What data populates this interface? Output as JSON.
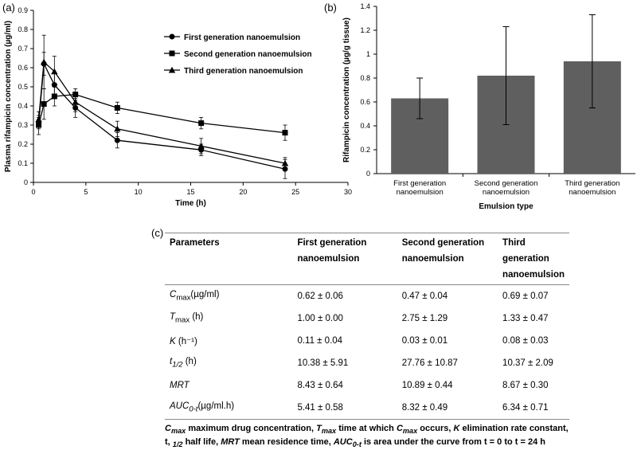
{
  "chart_data": [
    {
      "panel": "(a)",
      "type": "line",
      "xlabel": "Time (h)",
      "ylabel": "Plasma rifampicin concentration (µg/ml)",
      "xlim": [
        0,
        30
      ],
      "ylim": [
        0,
        0.9
      ],
      "xticks": [
        0,
        5,
        10,
        15,
        20,
        25,
        30
      ],
      "yticks": [
        0,
        0.1,
        0.2,
        0.3,
        0.4,
        0.5,
        0.6,
        0.7,
        0.8,
        0.9
      ],
      "grid": false,
      "legend": "top-right",
      "series": [
        {
          "name": "First generation nanoemulsion",
          "marker": "circle",
          "x": [
            0.5,
            1,
            2,
            4,
            8,
            16,
            24
          ],
          "y": [
            0.31,
            0.62,
            0.51,
            0.39,
            0.22,
            0.17,
            0.07
          ],
          "err": [
            0.03,
            0.06,
            0.06,
            0.05,
            0.04,
            0.03,
            0.05
          ]
        },
        {
          "name": "Second generation nanoemulsion",
          "marker": "square",
          "x": [
            0.5,
            1,
            2,
            4,
            8,
            16,
            24
          ],
          "y": [
            0.3,
            0.41,
            0.45,
            0.46,
            0.39,
            0.31,
            0.26
          ],
          "err": [
            0.05,
            0.08,
            0.05,
            0.03,
            0.03,
            0.03,
            0.04
          ]
        },
        {
          "name": "Third generation nanoemulsion",
          "marker": "triangle",
          "x": [
            0.5,
            1,
            2,
            4,
            8,
            16,
            24
          ],
          "y": [
            0.33,
            0.63,
            0.58,
            0.42,
            0.28,
            0.19,
            0.1
          ],
          "err": [
            0.04,
            0.14,
            0.08,
            0.05,
            0.04,
            0.04,
            0.03
          ]
        }
      ]
    },
    {
      "panel": "(b)",
      "type": "bar",
      "xlabel": "Emulsion type",
      "ylabel": "Rifampicin concentration (µg/g tissue)",
      "ylim": [
        0,
        1.4
      ],
      "yticks": [
        0,
        0.2,
        0.4,
        0.6,
        0.8,
        1,
        1.2,
        1.4
      ],
      "grid": false,
      "categories": [
        [
          "First generation",
          "nanoemulsion"
        ],
        [
          "Second generation",
          "nanoemulsion"
        ],
        [
          "Third generation",
          "nanoemulsion"
        ]
      ],
      "values": [
        0.63,
        0.82,
        0.94
      ],
      "err": [
        0.17,
        0.41,
        0.39
      ],
      "bar_color": "#5f5f5f"
    }
  ],
  "table": {
    "panel": "(c)",
    "headers": [
      [
        "Parameters",
        ""
      ],
      [
        "First generation",
        "nanoemulsion"
      ],
      [
        "Second generation",
        "nanoemulsion"
      ],
      [
        "Third generation",
        "nanoemulsion"
      ]
    ],
    "rows": [
      {
        "p": [
          "C",
          "max",
          "(µg/ml)"
        ],
        "v": [
          "0.62 ± 0.06",
          "0.47 ± 0.04",
          "0.69 ± 0.07"
        ]
      },
      {
        "p": [
          "T",
          "max",
          " (h)"
        ],
        "v": [
          "1.00 ± 0.00",
          "2.75 ± 1.29",
          "1.33 ± 0.47"
        ]
      },
      {
        "p": [
          "K",
          "",
          " (h⁻¹)"
        ],
        "v": [
          "0.11 ± 0.04",
          "0.03 ± 0.01",
          "0.08 ± 0.03"
        ]
      },
      {
        "p": [
          "t",
          "1/2",
          " (h)"
        ],
        "v": [
          "10.38 ± 5.91",
          "27.76 ± 10.87",
          "10.37 ± 2.09"
        ]
      },
      {
        "p": [
          "MRT",
          "",
          ""
        ],
        "v": [
          "8.43 ± 0.64",
          "10.89 ± 0.44",
          "8.67 ± 0.30"
        ]
      },
      {
        "p": [
          "AUC",
          "0-t",
          "(µg/ml.h)"
        ],
        "v": [
          "5.41 ± 0.58",
          "8.32 ± 0.49",
          "6.34 ± 0.71"
        ]
      }
    ],
    "footnote": {
      "line1": [
        {
          "t": "C",
          "i": true
        },
        {
          "t": "max",
          "i": true,
          "sub": true
        },
        {
          "t": " maximum drug concentration, "
        },
        {
          "t": "T",
          "i": true
        },
        {
          "t": "max",
          "i": true,
          "sub": true
        },
        {
          "t": " time at which "
        },
        {
          "t": "C",
          "i": true
        },
        {
          "t": "max",
          "i": true,
          "sub": true
        },
        {
          "t": " occurs, "
        },
        {
          "t": "K",
          "i": true
        },
        {
          "t": " elimination rate constant,"
        }
      ],
      "line2": [
        {
          "t": "t, "
        },
        {
          "t": "1/2",
          "i": true,
          "sub": true
        },
        {
          "t": " half life, "
        },
        {
          "t": "MRT",
          "i": true
        },
        {
          "t": " mean residence time, "
        },
        {
          "t": "AUC",
          "i": true
        },
        {
          "t": "0-t",
          "i": true,
          "sub": true
        },
        {
          "t": " is area under the curve from t = 0 to t = 24 h"
        }
      ]
    }
  }
}
